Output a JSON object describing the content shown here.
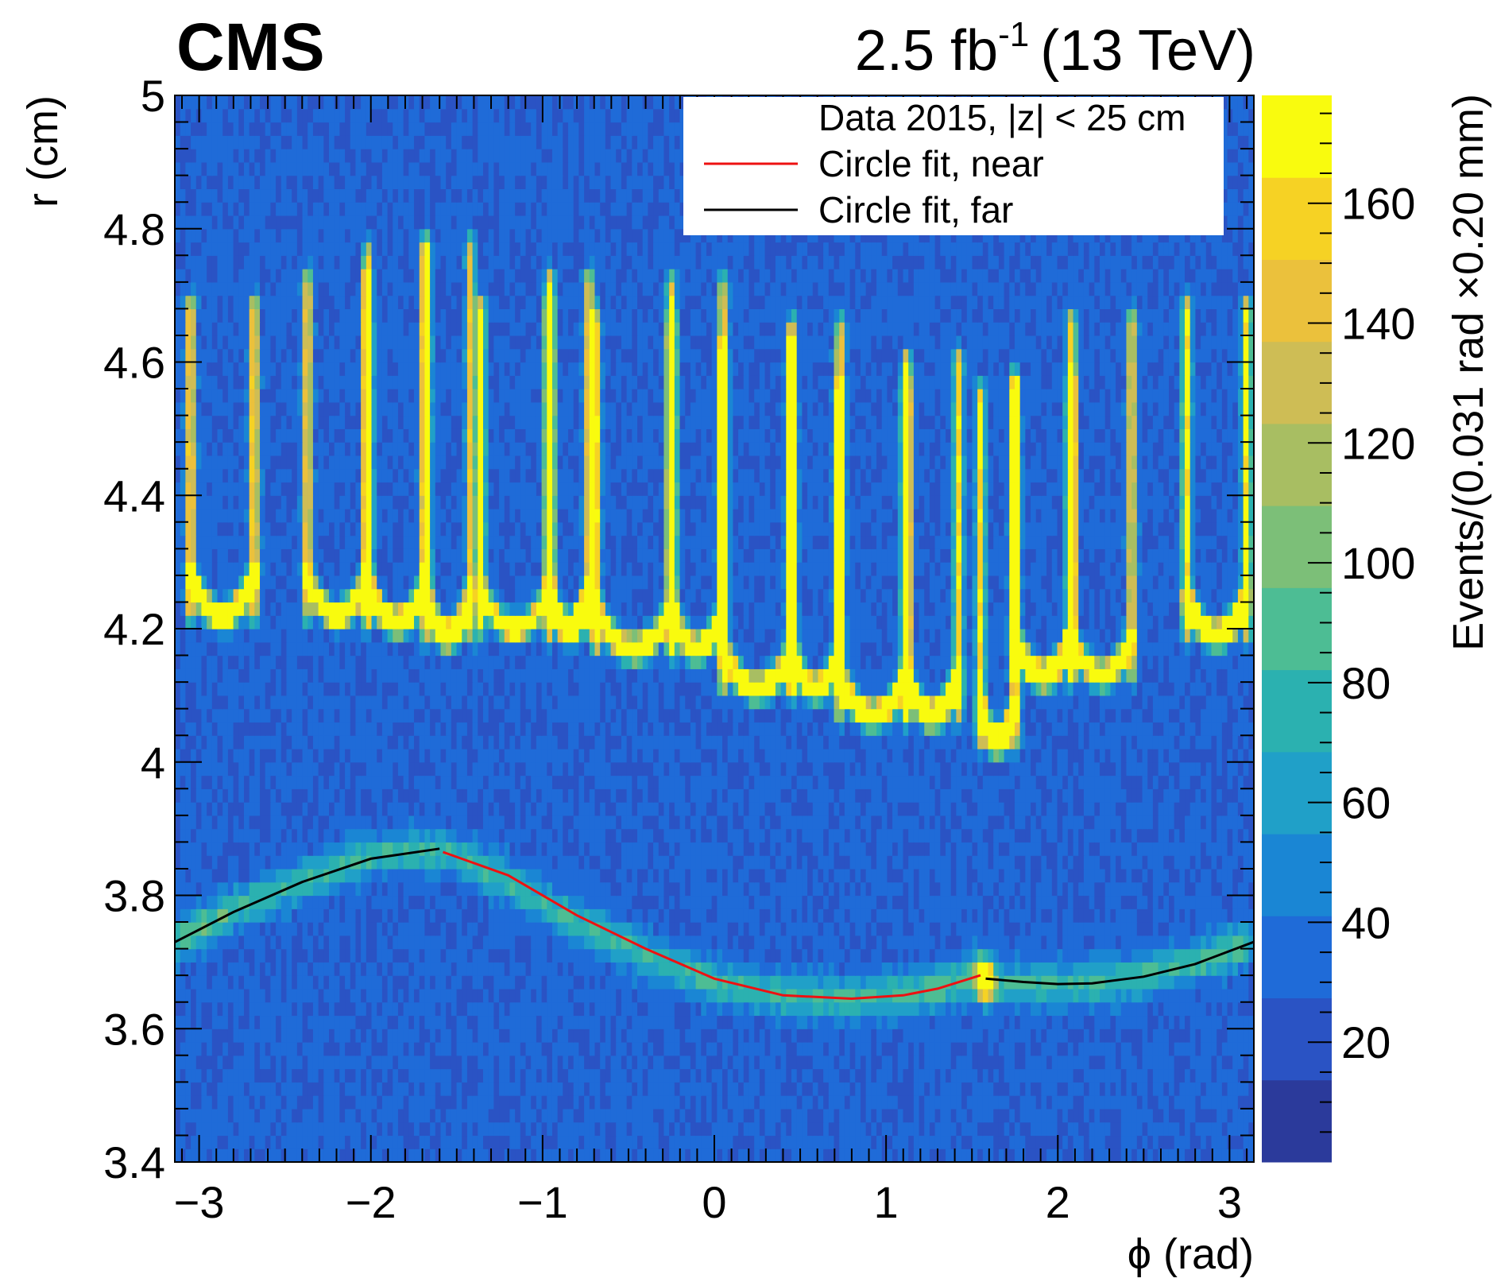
{
  "chart_data": {
    "type": "heatmap",
    "experiment_label": "CMS",
    "lumi_label": {
      "value": "2.5 fb",
      "superscript": "-1",
      "energy": "(13 TeV)"
    },
    "xlabel": "ϕ (rad)",
    "ylabel": "r (cm)",
    "zlabel": "Events/(0.031 rad ×0.20 mm)",
    "xlim": [
      -3.1416,
      3.1416
    ],
    "ylim": [
      3.4,
      5.0
    ],
    "zlim": [
      0,
      178
    ],
    "x_ticks": [
      {
        "value": -3,
        "label": "−3"
      },
      {
        "value": -2,
        "label": "−2"
      },
      {
        "value": -1,
        "label": "−1"
      },
      {
        "value": 0,
        "label": "0"
      },
      {
        "value": 1,
        "label": "1"
      },
      {
        "value": 2,
        "label": "2"
      },
      {
        "value": 3,
        "label": "3"
      }
    ],
    "y_ticks": [
      {
        "value": 3.4,
        "label": "3.4"
      },
      {
        "value": 3.6,
        "label": "3.6"
      },
      {
        "value": 3.8,
        "label": "3.8"
      },
      {
        "value": 4.0,
        "label": "4"
      },
      {
        "value": 4.2,
        "label": "4.2"
      },
      {
        "value": 4.4,
        "label": "4.4"
      },
      {
        "value": 4.6,
        "label": "4.6"
      },
      {
        "value": 4.8,
        "label": "4.8"
      },
      {
        "value": 5.0,
        "label": "5"
      }
    ],
    "z_ticks": [
      {
        "value": 20,
        "label": "20"
      },
      {
        "value": 40,
        "label": "40"
      },
      {
        "value": 60,
        "label": "60"
      },
      {
        "value": 80,
        "label": "80"
      },
      {
        "value": 100,
        "label": "100"
      },
      {
        "value": 120,
        "label": "120"
      },
      {
        "value": 140,
        "label": "140"
      },
      {
        "value": 160,
        "label": "160"
      }
    ],
    "palette": [
      "#2b3a9b",
      "#2a53c4",
      "#1f6bd8",
      "#1a86d4",
      "#20a0c8",
      "#2bb1b0",
      "#4dbd94",
      "#7cbf78",
      "#a8be62",
      "#cebd55",
      "#ebc13c",
      "#f6d224",
      "#f9fb0e"
    ],
    "legend": {
      "placement": "top-right",
      "entries": [
        {
          "label": "Data 2015, |z| < 25 cm",
          "marker": "none"
        },
        {
          "label": "Circle fit, near",
          "color": "#ee1111"
        },
        {
          "label": "Circle fit, far",
          "color": "#000000"
        }
      ]
    },
    "background_density": 30,
    "pixel_ladders": {
      "sensor_count": 16,
      "sensors": [
        {
          "phi_left": -3.05,
          "phi_right": -2.68,
          "r_bottom": 4.22,
          "r_top": 4.69,
          "bright_bottom": true
        },
        {
          "phi_left": -2.37,
          "phi_right": -2.02,
          "r_bottom": 4.22,
          "r_top": 4.73,
          "bright_bottom": false
        },
        {
          "phi_left": -2.02,
          "phi_right": -1.68,
          "r_bottom": 4.21,
          "r_top": 4.77,
          "bright_bottom": true
        },
        {
          "phi_left": -1.68,
          "phi_right": -1.42,
          "r_bottom": 4.19,
          "r_top": 4.78,
          "bright_bottom": true
        },
        {
          "phi_left": -1.36,
          "phi_right": -0.96,
          "r_bottom": 4.2,
          "r_top": 4.69,
          "bright_bottom": false
        },
        {
          "phi_left": -0.96,
          "phi_right": -0.73,
          "r_bottom": 4.2,
          "r_top": 4.73,
          "bright_bottom": true
        },
        {
          "phi_left": -0.69,
          "phi_right": -0.25,
          "r_bottom": 4.17,
          "r_top": 4.67,
          "bright_bottom": true
        },
        {
          "phi_left": -0.25,
          "phi_right": 0.05,
          "r_bottom": 4.17,
          "r_top": 4.72,
          "bright_bottom": false
        },
        {
          "phi_left": 0.05,
          "phi_right": 0.45,
          "r_bottom": 4.11,
          "r_top": 4.63,
          "bright_bottom": true
        },
        {
          "phi_left": 0.45,
          "phi_right": 0.73,
          "r_bottom": 4.11,
          "r_top": 4.66,
          "bright_bottom": false
        },
        {
          "phi_left": 0.73,
          "phi_right": 1.12,
          "r_bottom": 4.07,
          "r_top": 4.57,
          "bright_bottom": true
        },
        {
          "phi_left": 1.12,
          "phi_right": 1.42,
          "r_bottom": 4.07,
          "r_top": 4.61,
          "bright_bottom": true
        },
        {
          "phi_left": 1.55,
          "phi_right": 1.75,
          "r_bottom": 4.03,
          "r_top": 4.56,
          "bright_bottom": false
        },
        {
          "phi_left": 1.75,
          "phi_right": 2.08,
          "r_bottom": 4.13,
          "r_top": 4.58,
          "bright_bottom": true
        },
        {
          "phi_left": 2.08,
          "phi_right": 2.43,
          "r_bottom": 4.13,
          "r_top": 4.67,
          "bright_bottom": false
        },
        {
          "phi_left": 2.75,
          "phi_right": 3.1,
          "r_bottom": 4.19,
          "r_top": 4.69,
          "bright_bottom": true
        }
      ]
    },
    "beampipe_band": [
      [
        -3.14,
        3.73
      ],
      [
        -2.8,
        3.78
      ],
      [
        -2.4,
        3.82
      ],
      [
        -2.0,
        3.86
      ],
      [
        -1.6,
        3.87
      ],
      [
        -1.2,
        3.82
      ],
      [
        -0.8,
        3.76
      ],
      [
        -0.4,
        3.71
      ],
      [
        0.0,
        3.67
      ],
      [
        0.4,
        3.65
      ],
      [
        0.8,
        3.645
      ],
      [
        1.2,
        3.655
      ],
      [
        1.55,
        3.68
      ],
      [
        1.6,
        3.67
      ],
      [
        2.0,
        3.665
      ],
      [
        2.4,
        3.675
      ],
      [
        2.8,
        3.7
      ],
      [
        3.14,
        3.73
      ]
    ],
    "series": [
      {
        "name": "Circle fit, near",
        "color": "#ee1111",
        "x": [
          -1.58,
          -1.2,
          -0.8,
          -0.4,
          0.0,
          0.4,
          0.8,
          1.1,
          1.3,
          1.55
        ],
        "y": [
          3.865,
          3.83,
          3.77,
          3.72,
          3.675,
          3.65,
          3.645,
          3.65,
          3.66,
          3.68
        ]
      },
      {
        "name": "Circle fit, far",
        "color": "#000000",
        "x": [
          -3.14,
          -2.8,
          -2.4,
          -2.0,
          -1.6
        ],
        "y": [
          3.73,
          3.775,
          3.82,
          3.855,
          3.87
        ]
      },
      {
        "name": "Circle fit, far",
        "color": "#000000",
        "x": [
          1.58,
          1.8,
          2.0,
          2.2,
          2.5,
          2.8,
          3.14
        ],
        "y": [
          3.675,
          3.67,
          3.667,
          3.668,
          3.678,
          3.697,
          3.73
        ]
      }
    ]
  }
}
